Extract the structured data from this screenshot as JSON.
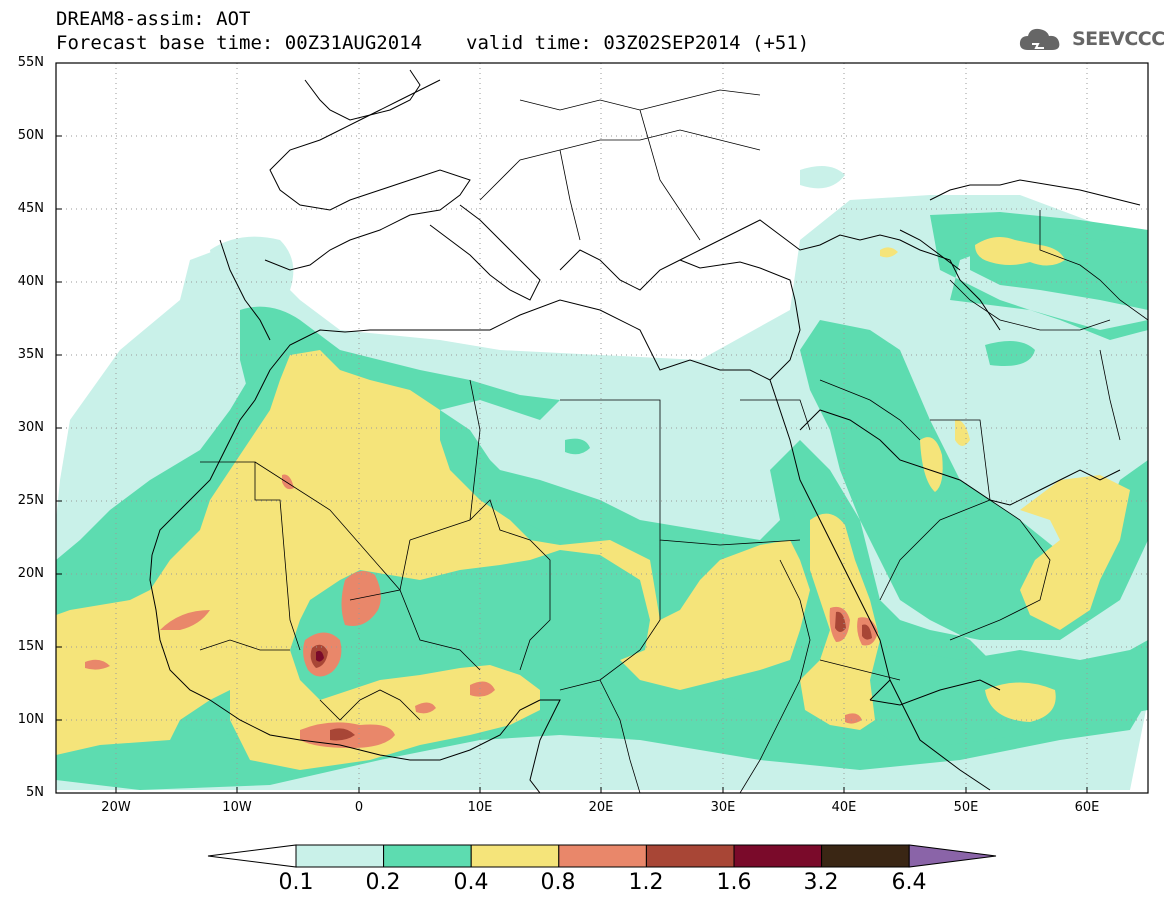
{
  "title": {
    "line1": "DREAM8-assim: AOT",
    "base_time": "Forecast base time: 00Z31AUG2014",
    "valid_time": "valid time: 03Z02SEP2014 (+51)"
  },
  "logo": {
    "text": "SEEVCCC",
    "icon": "cloud-icon"
  },
  "map": {
    "variable": "AOT",
    "lat_labels": [
      "55N",
      "50N",
      "45N",
      "40N",
      "35N",
      "30N",
      "25N",
      "20N",
      "15N",
      "10N",
      "5N"
    ],
    "lon_labels": [
      "20W",
      "10W",
      "0",
      "10E",
      "20E",
      "30E",
      "40E",
      "50E",
      "60E"
    ],
    "colors": {
      "c01": "#c9f1e9",
      "c02": "#5ddcb0",
      "c04": "#f5e47a",
      "c08": "#e9876a",
      "c12": "#a84636",
      "c16": "#7a0a2a",
      "c32": "#3a2614",
      "c64": "#8a64a8",
      "border": "#000000",
      "grid": "#888888"
    }
  },
  "colorbar": {
    "levels": [
      "0.1",
      "0.2",
      "0.4",
      "0.8",
      "1.2",
      "1.6",
      "3.2",
      "6.4"
    ],
    "colors": [
      "#ffffff",
      "#c9f1e9",
      "#5ddcb0",
      "#f5e47a",
      "#e9876a",
      "#a84636",
      "#7a0a2a",
      "#3a2614",
      "#8a64a8"
    ]
  }
}
